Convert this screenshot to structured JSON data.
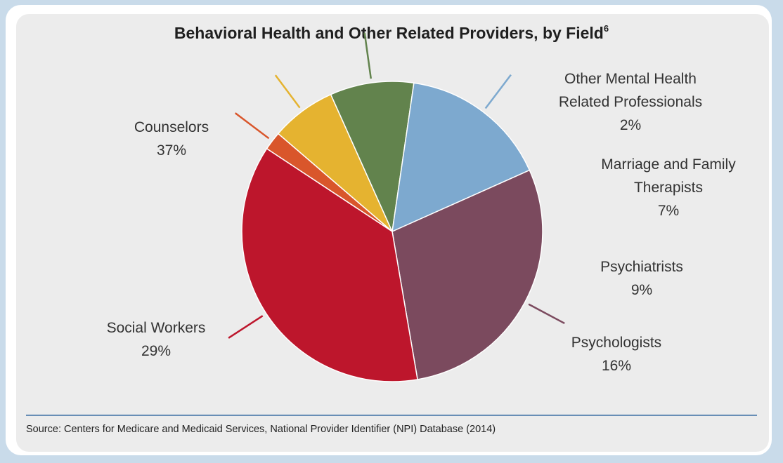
{
  "chart_data": {
    "type": "pie",
    "title": "Behavioral Health and Other Related Providers, by Field",
    "title_footnote": "6",
    "slices": [
      {
        "label_lines": [
          "Other Mental Health",
          "Related Professionals"
        ],
        "value": 2,
        "value_label": "2%",
        "color": "#d9562b"
      },
      {
        "label_lines": [
          "Marriage and Family",
          "Therapists"
        ],
        "value": 7,
        "value_label": "7%",
        "color": "#e5b330"
      },
      {
        "label_lines": [
          "Psychiatrists"
        ],
        "value": 9,
        "value_label": "9%",
        "color": "#62834d"
      },
      {
        "label_lines": [
          "Psychologists"
        ],
        "value": 16,
        "value_label": "16%",
        "color": "#7da9cf"
      },
      {
        "label_lines": [
          "Social Workers"
        ],
        "value": 29,
        "value_label": "29%",
        "color": "#7b4a5e"
      },
      {
        "label_lines": [
          "Counselors"
        ],
        "value": 37,
        "value_label": "37%",
        "color": "#bd162c"
      }
    ],
    "source": "Source: Centers for Medicare and Medicaid Services, National Provider Identifier (NPI) Database (2014)"
  },
  "colors": {
    "divider": "#3d6fa3",
    "background": "#c9dbea",
    "panel": "#ececec"
  }
}
